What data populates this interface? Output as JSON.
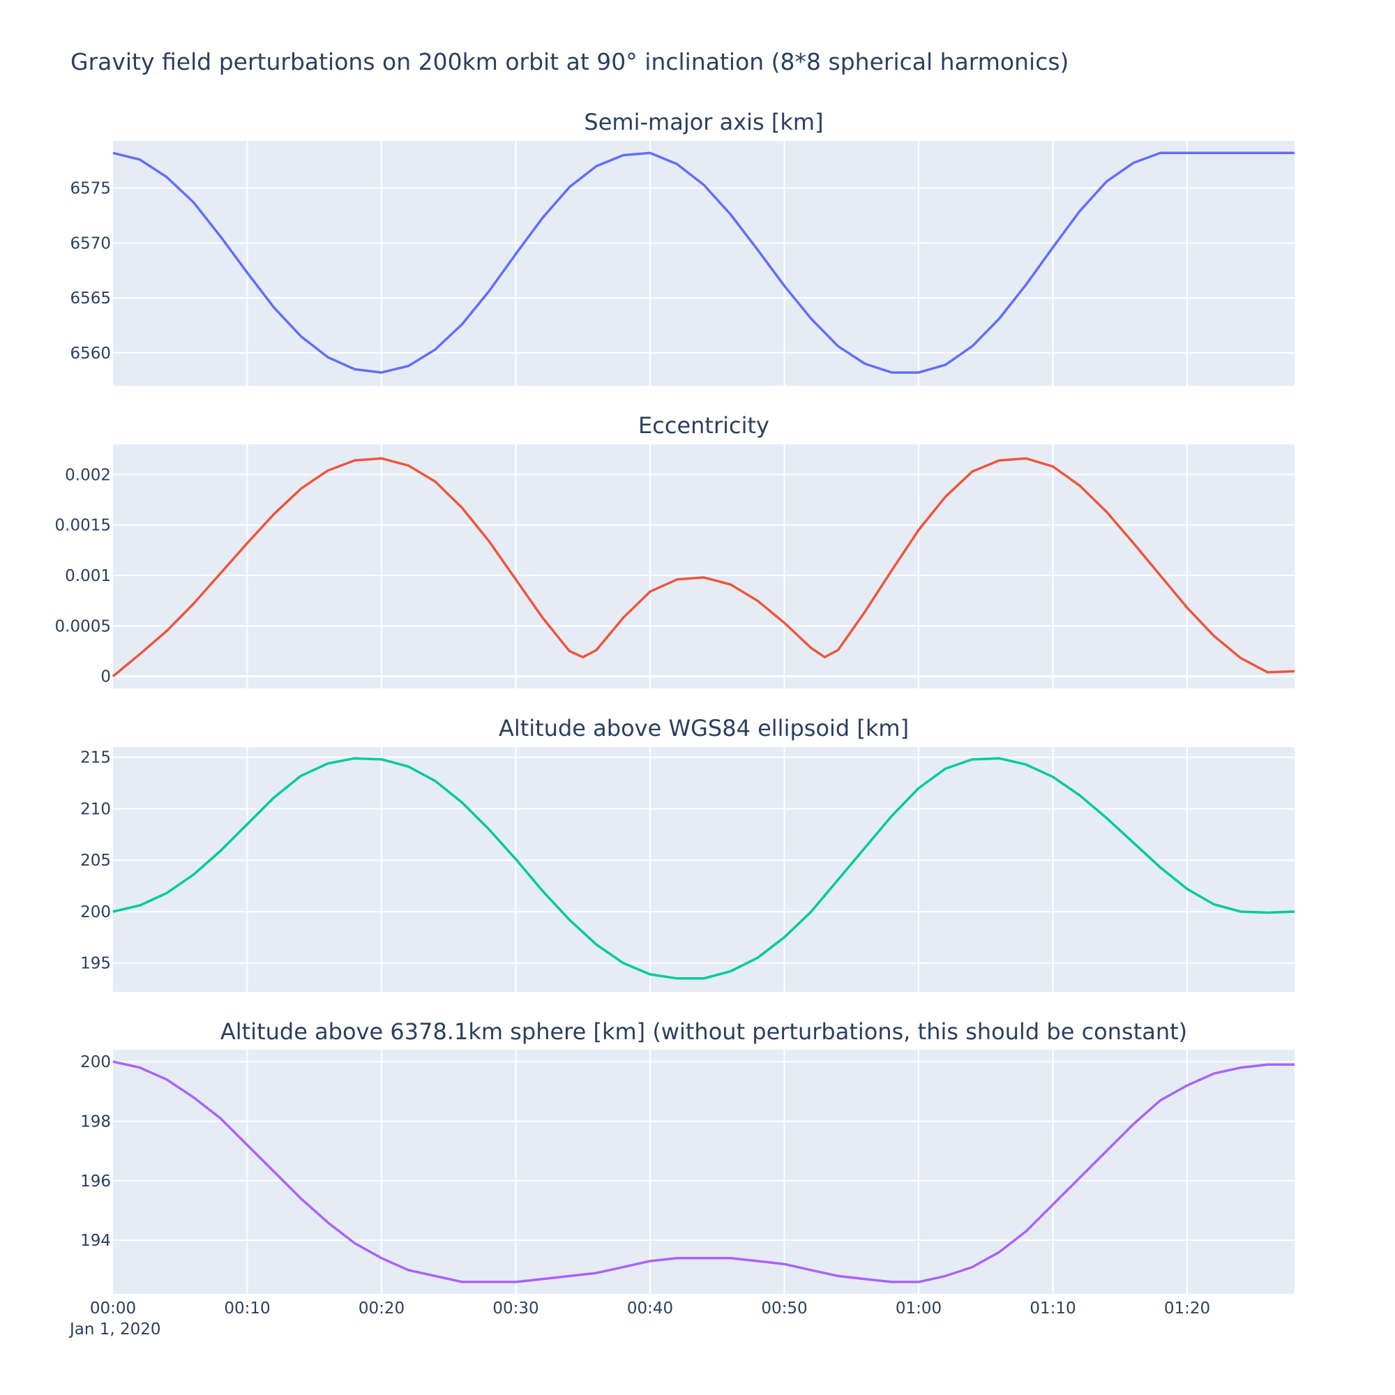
{
  "figure": {
    "title": "Gravity field perturbations on 200km orbit at 90° inclination (8*8 spherical harmonics)",
    "x_tick_labels": [
      "00:00",
      "00:10",
      "00:20",
      "00:30",
      "00:40",
      "00:50",
      "01:00",
      "01:10",
      "01:20"
    ],
    "x_date_label": "Jan 1, 2020",
    "colors": {
      "plot_background": "#e5ecf6",
      "grid": "#ffffff",
      "text": "#2a3f5f"
    }
  },
  "chart_data": [
    {
      "type": "line",
      "title": "Semi-major axis [km]",
      "xlabel": "",
      "ylabel": "",
      "color": "#636efa",
      "xlim": [
        "2020-01-01 00:00",
        "2020-01-01 01:28"
      ],
      "ylim": [
        6557,
        6579.3
      ],
      "y_ticks": [
        6560,
        6565,
        6570,
        6575
      ],
      "y_tick_labels": [
        "6560",
        "6565",
        "6570",
        "6575"
      ],
      "grid": true,
      "series": [
        {
          "x": [
            "2020-01-01 00:00",
            "2020-01-01 00:02",
            "2020-01-01 00:04",
            "2020-01-01 00:06",
            "2020-01-01 00:08",
            "2020-01-01 00:10",
            "2020-01-01 00:12",
            "2020-01-01 00:14",
            "2020-01-01 00:16",
            "2020-01-01 00:18",
            "2020-01-01 00:20",
            "2020-01-01 00:22",
            "2020-01-01 00:24",
            "2020-01-01 00:26",
            "2020-01-01 00:28",
            "2020-01-01 00:30",
            "2020-01-01 00:32",
            "2020-01-01 00:34",
            "2020-01-01 00:36",
            "2020-01-01 00:38",
            "2020-01-01 00:40",
            "2020-01-01 00:42",
            "2020-01-01 00:44",
            "2020-01-01 00:46",
            "2020-01-01 00:48",
            "2020-01-01 00:50",
            "2020-01-01 00:52",
            "2020-01-01 00:54",
            "2020-01-01 00:56",
            "2020-01-01 00:58",
            "2020-01-01 01:00",
            "2020-01-01 01:02",
            "2020-01-01 01:04",
            "2020-01-01 01:06",
            "2020-01-01 01:08",
            "2020-01-01 01:10",
            "2020-01-01 01:12",
            "2020-01-01 01:14",
            "2020-01-01 01:16",
            "2020-01-01 01:18",
            "2020-01-01 01:20",
            "2020-01-01 01:22",
            "2020-01-01 01:24",
            "2020-01-01 01:26",
            "2020-01-01 01:28"
          ],
          "y": [
            6578.2,
            6577.6,
            6576.0,
            6573.7,
            6570.6,
            6567.3,
            6564.1,
            6561.5,
            6559.6,
            6558.5,
            6558.2,
            6558.8,
            6560.3,
            6562.6,
            6565.6,
            6569.0,
            6572.3,
            6575.1,
            6577.0,
            6578.0,
            6578.2,
            6577.2,
            6575.3,
            6572.6,
            6569.4,
            6566.1,
            6563.1,
            6560.6,
            6559.0,
            6558.2,
            6558.2,
            6558.9,
            6560.6,
            6563.1,
            6566.2,
            6569.6,
            6572.9,
            6575.6,
            6577.3,
            6578.2,
            6578.2,
            6578.2,
            6578.2,
            6578.2,
            6578.2
          ]
        }
      ]
    },
    {
      "type": "line",
      "title": "Eccentricity",
      "xlabel": "",
      "ylabel": "",
      "color": "#ef553b",
      "xlim": [
        "2020-01-01 00:00",
        "2020-01-01 01:28"
      ],
      "ylim": [
        -0.00012,
        0.0023
      ],
      "y_ticks": [
        0,
        0.0005,
        0.001,
        0.0015,
        0.002
      ],
      "y_tick_labels": [
        "0",
        "0.0005",
        "0.001",
        "0.0015",
        "0.002"
      ],
      "grid": true,
      "series": [
        {
          "x": [
            "2020-01-01 00:00",
            "2020-01-01 00:02",
            "2020-01-01 00:04",
            "2020-01-01 00:06",
            "2020-01-01 00:08",
            "2020-01-01 00:10",
            "2020-01-01 00:12",
            "2020-01-01 00:14",
            "2020-01-01 00:16",
            "2020-01-01 00:18",
            "2020-01-01 00:20",
            "2020-01-01 00:22",
            "2020-01-01 00:24",
            "2020-01-01 00:26",
            "2020-01-01 00:28",
            "2020-01-01 00:30",
            "2020-01-01 00:32",
            "2020-01-01 00:34",
            "2020-01-01 00:35",
            "2020-01-01 00:36",
            "2020-01-01 00:38",
            "2020-01-01 00:40",
            "2020-01-01 00:42",
            "2020-01-01 00:44",
            "2020-01-01 00:46",
            "2020-01-01 00:48",
            "2020-01-01 00:50",
            "2020-01-01 00:52",
            "2020-01-01 00:53",
            "2020-01-01 00:54",
            "2020-01-01 00:56",
            "2020-01-01 00:58",
            "2020-01-01 01:00",
            "2020-01-01 01:02",
            "2020-01-01 01:04",
            "2020-01-01 01:06",
            "2020-01-01 01:08",
            "2020-01-01 01:10",
            "2020-01-01 01:12",
            "2020-01-01 01:14",
            "2020-01-01 01:16",
            "2020-01-01 01:18",
            "2020-01-01 01:20",
            "2020-01-01 01:22",
            "2020-01-01 01:24",
            "2020-01-01 01:26",
            "2020-01-01 01:28"
          ],
          "y": [
            0.0,
            0.00022,
            0.00045,
            0.00072,
            0.00102,
            0.00132,
            0.00161,
            0.00186,
            0.00204,
            0.00214,
            0.00216,
            0.00209,
            0.00193,
            0.00167,
            0.00134,
            0.00096,
            0.00058,
            0.00025,
            0.00019,
            0.00026,
            0.00058,
            0.00084,
            0.00096,
            0.00098,
            0.00091,
            0.00075,
            0.00053,
            0.00028,
            0.00019,
            0.00026,
            0.00064,
            0.00105,
            0.00145,
            0.00178,
            0.00203,
            0.00214,
            0.00216,
            0.00208,
            0.00189,
            0.00163,
            0.00132,
            0.001,
            0.00068,
            0.0004,
            0.00018,
            4e-05,
            5e-05
          ]
        }
      ]
    },
    {
      "type": "line",
      "title": "Altitude above WGS84 ellipsoid [km]",
      "xlabel": "",
      "ylabel": "",
      "color": "#00cc96",
      "xlim": [
        "2020-01-01 00:00",
        "2020-01-01 01:28"
      ],
      "ylim": [
        192.2,
        216.0
      ],
      "y_ticks": [
        195,
        200,
        205,
        210,
        215
      ],
      "y_tick_labels": [
        "195",
        "200",
        "205",
        "210",
        "215"
      ],
      "grid": true,
      "series": [
        {
          "x": [
            "2020-01-01 00:00",
            "2020-01-01 00:02",
            "2020-01-01 00:04",
            "2020-01-01 00:06",
            "2020-01-01 00:08",
            "2020-01-01 00:10",
            "2020-01-01 00:12",
            "2020-01-01 00:14",
            "2020-01-01 00:16",
            "2020-01-01 00:18",
            "2020-01-01 00:20",
            "2020-01-01 00:22",
            "2020-01-01 00:24",
            "2020-01-01 00:26",
            "2020-01-01 00:28",
            "2020-01-01 00:30",
            "2020-01-01 00:32",
            "2020-01-01 00:34",
            "2020-01-01 00:36",
            "2020-01-01 00:38",
            "2020-01-01 00:40",
            "2020-01-01 00:42",
            "2020-01-01 00:44",
            "2020-01-01 00:46",
            "2020-01-01 00:48",
            "2020-01-01 00:50",
            "2020-01-01 00:52",
            "2020-01-01 00:54",
            "2020-01-01 00:56",
            "2020-01-01 00:58",
            "2020-01-01 01:00",
            "2020-01-01 01:02",
            "2020-01-01 01:04",
            "2020-01-01 01:06",
            "2020-01-01 01:08",
            "2020-01-01 01:10",
            "2020-01-01 01:12",
            "2020-01-01 01:14",
            "2020-01-01 01:16",
            "2020-01-01 01:18",
            "2020-01-01 01:20",
            "2020-01-01 01:22",
            "2020-01-01 01:24",
            "2020-01-01 01:26",
            "2020-01-01 01:28"
          ],
          "y": [
            200.0,
            200.6,
            201.8,
            203.6,
            205.9,
            208.5,
            211.1,
            213.2,
            214.4,
            214.9,
            214.8,
            214.1,
            212.7,
            210.6,
            208.0,
            205.1,
            202.0,
            199.2,
            196.8,
            195.0,
            193.9,
            193.5,
            193.5,
            194.2,
            195.5,
            197.5,
            200.0,
            203.1,
            206.2,
            209.3,
            212.0,
            213.9,
            214.8,
            214.9,
            214.3,
            213.1,
            211.3,
            209.1,
            206.7,
            204.3,
            202.2,
            200.7,
            200.0,
            199.9,
            200.0
          ]
        }
      ]
    },
    {
      "type": "line",
      "title": "Altitude above 6378.1km sphere [km] (without perturbations, this should be constant)",
      "xlabel": "",
      "ylabel": "",
      "color": "#ab63fa",
      "xlim": [
        "2020-01-01 00:00",
        "2020-01-01 01:28"
      ],
      "ylim": [
        192.2,
        200.4
      ],
      "y_ticks": [
        194,
        196,
        198,
        200
      ],
      "y_tick_labels": [
        "194",
        "196",
        "198",
        "200"
      ],
      "grid": true,
      "series": [
        {
          "x": [
            "2020-01-01 00:00",
            "2020-01-01 00:02",
            "2020-01-01 00:04",
            "2020-01-01 00:06",
            "2020-01-01 00:08",
            "2020-01-01 00:10",
            "2020-01-01 00:12",
            "2020-01-01 00:14",
            "2020-01-01 00:16",
            "2020-01-01 00:18",
            "2020-01-01 00:20",
            "2020-01-01 00:22",
            "2020-01-01 00:24",
            "2020-01-01 00:26",
            "2020-01-01 00:28",
            "2020-01-01 00:30",
            "2020-01-01 00:32",
            "2020-01-01 00:34",
            "2020-01-01 00:36",
            "2020-01-01 00:38",
            "2020-01-01 00:40",
            "2020-01-01 00:42",
            "2020-01-01 00:44",
            "2020-01-01 00:46",
            "2020-01-01 00:48",
            "2020-01-01 00:50",
            "2020-01-01 00:52",
            "2020-01-01 00:54",
            "2020-01-01 00:56",
            "2020-01-01 00:58",
            "2020-01-01 01:00",
            "2020-01-01 01:02",
            "2020-01-01 01:04",
            "2020-01-01 01:06",
            "2020-01-01 01:08",
            "2020-01-01 01:10",
            "2020-01-01 01:12",
            "2020-01-01 01:14",
            "2020-01-01 01:16",
            "2020-01-01 01:18",
            "2020-01-01 01:20",
            "2020-01-01 01:22",
            "2020-01-01 01:24",
            "2020-01-01 01:26",
            "2020-01-01 01:28"
          ],
          "y": [
            200.0,
            199.8,
            199.4,
            198.8,
            198.1,
            197.2,
            196.3,
            195.4,
            194.6,
            193.9,
            193.4,
            193.0,
            192.8,
            192.6,
            192.6,
            192.6,
            192.7,
            192.8,
            192.9,
            193.1,
            193.3,
            193.4,
            193.4,
            193.4,
            193.3,
            193.2,
            193.0,
            192.8,
            192.7,
            192.6,
            192.6,
            192.8,
            193.1,
            193.6,
            194.3,
            195.2,
            196.1,
            197.0,
            197.9,
            198.7,
            199.2,
            199.6,
            199.8,
            199.9,
            199.9
          ]
        }
      ]
    }
  ]
}
